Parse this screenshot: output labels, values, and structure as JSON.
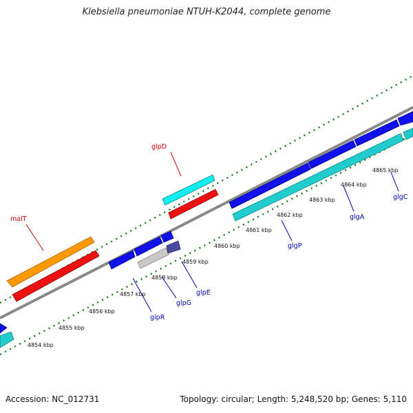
{
  "header": {
    "title": "Klebsiella pneumoniae NTUH-K2044, complete genome"
  },
  "footer": {
    "accession": "Accession: NC_012731",
    "summary": "Topology: circular; Length: 5,248,520 bp; Genes: 5,110"
  },
  "ticks": {
    "unit": "kbp",
    "labels": [
      "4854 kbp",
      "4855 kbp",
      "4856 kbp",
      "4857 kbp",
      "4858 kbp",
      "4859 kbp",
      "4860 kbp",
      "4861 kbp",
      "4862 kbp",
      "4863 kbp",
      "4864 kbp",
      "4865 kbp"
    ]
  },
  "genes": [
    {
      "name": "malT",
      "color": "#cc0000"
    },
    {
      "name": "glpD",
      "color": "#cc0000"
    },
    {
      "name": "glpR",
      "color": "#0000aa"
    },
    {
      "name": "glpG",
      "color": "#0000aa"
    },
    {
      "name": "glpE",
      "color": "#0000aa"
    },
    {
      "name": "glgP",
      "color": "#0000aa"
    },
    {
      "name": "glgA",
      "color": "#0000aa"
    },
    {
      "name": "glgC",
      "color": "#0000aa"
    }
  ],
  "colors": {
    "forward_strand_red": "#ee1111",
    "forward_strand_cyan": "#11eeee",
    "forward_strand_orange": "#ff9900",
    "reverse_strand_blue": "#1111ee",
    "reverse_strand_teal": "#22cccc",
    "reverse_strand_grey": "#c8c8c8",
    "reverse_strand_navy": "#4a4aa0",
    "backbone": "#888888",
    "gc_ticks": "#1a7a1a"
  }
}
